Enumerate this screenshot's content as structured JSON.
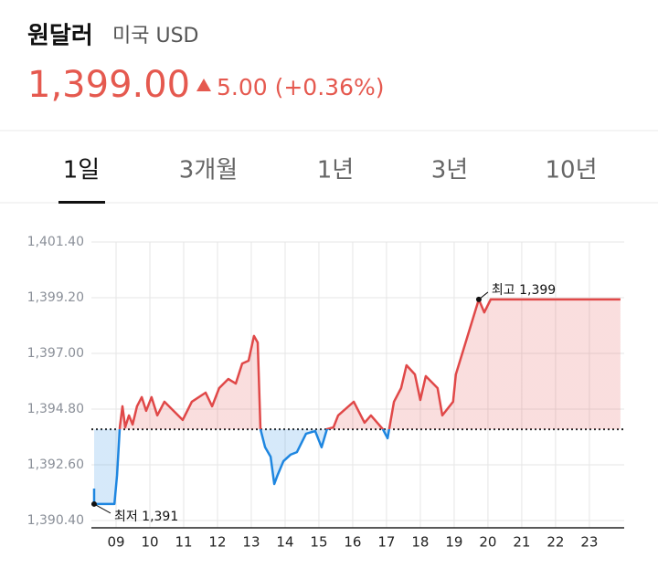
{
  "header": {
    "title": "원달러",
    "subtitle": "미국 USD",
    "price": "1,399.00",
    "change": "5.00 (+0.36%)"
  },
  "tabs": [
    "1일",
    "3개월",
    "1년",
    "3년",
    "10년"
  ],
  "chart_data": {
    "type": "line",
    "x": [
      8.35,
      8.35,
      8.95,
      9.03,
      9.11,
      9.19,
      9.27,
      9.38,
      9.49,
      9.62,
      9.76,
      9.89,
      10.05,
      10.22,
      10.43,
      10.7,
      10.97,
      11.24,
      11.65,
      11.84,
      12.05,
      12.32,
      12.54,
      12.73,
      12.92,
      13.08,
      13.19,
      13.27,
      13.41,
      13.57,
      13.68,
      13.78,
      13.95,
      14.16,
      14.35,
      14.62,
      14.89,
      15.08,
      15.24,
      15.43,
      15.57,
      16.03,
      16.35,
      16.54,
      16.89,
      17.03,
      17.22,
      17.43,
      17.59,
      17.84,
      18.0,
      18.16,
      18.51,
      18.65,
      18.97,
      19.05,
      19.73,
      19.89,
      20.08,
      23.92
    ],
    "series": [
      {
        "color": "#e04848",
        "values": [
          1391.66,
          1391.05,
          1391.05,
          1392.2,
          1394.08,
          1394.91,
          1394.08,
          1394.55,
          1394.19,
          1394.91,
          1395.27,
          1394.73,
          1395.27,
          1394.55,
          1395.09,
          1394.73,
          1394.37,
          1395.09,
          1395.45,
          1394.91,
          1395.63,
          1395.99,
          1395.81,
          1396.6,
          1396.71,
          1397.69,
          1397.43,
          1394.01,
          1393.29,
          1392.92,
          1391.84,
          1392.2,
          1392.74,
          1393.0,
          1393.1,
          1393.83,
          1393.93,
          1393.29,
          1394.01,
          1394.08,
          1394.55,
          1395.09,
          1394.26,
          1394.55,
          1394.01,
          1393.65,
          1395.09,
          1395.63,
          1396.53,
          1396.17,
          1395.16,
          1396.1,
          1395.63,
          1394.55,
          1395.09,
          1396.17,
          1399.13,
          1398.62,
          1399.13,
          1399.13
        ]
      }
    ],
    "below_color": "#1e86e0",
    "baseline": 1394.0,
    "xlim": [
      8.27,
      24.03
    ],
    "ylim": [
      1390.11,
      1401.4
    ],
    "yticks": [
      {
        "value": 1401.4,
        "label": "1,401.40"
      },
      {
        "value": 1399.2,
        "label": "1,399.20"
      },
      {
        "value": 1397.0,
        "label": "1,397.00"
      },
      {
        "value": 1394.8,
        "label": "1,394.80"
      },
      {
        "value": 1392.6,
        "label": "1,392.60"
      },
      {
        "value": 1390.4,
        "label": "1,390.40"
      }
    ],
    "xticks": [
      {
        "value": 9,
        "label": "09"
      },
      10,
      11,
      12,
      13,
      14,
      15,
      16,
      17,
      18,
      19,
      20,
      21,
      22,
      23
    ],
    "annotations": [
      {
        "text": "최저 1,391",
        "x": 8.35,
        "y": 1391.05
      },
      {
        "text": "최고 1,399",
        "x": 19.73,
        "y": 1399.13
      }
    ],
    "grid": true
  }
}
